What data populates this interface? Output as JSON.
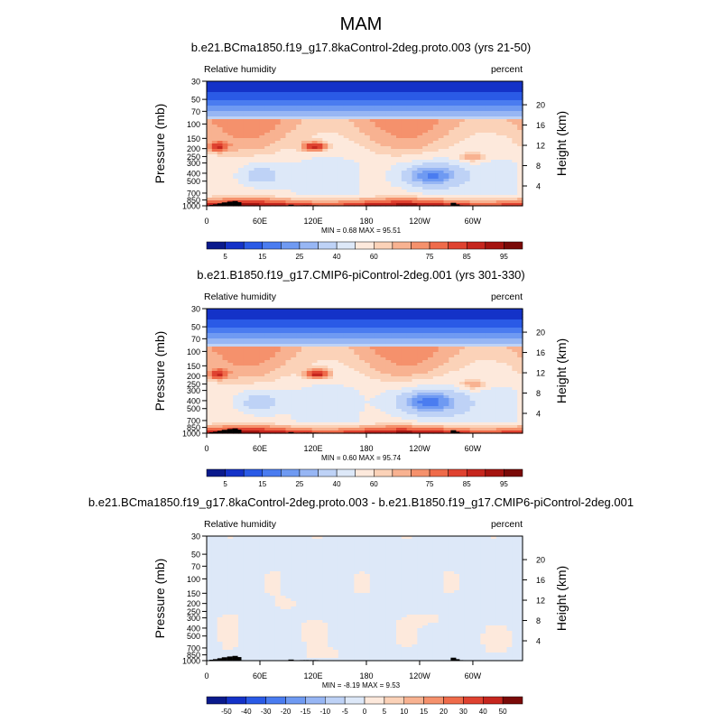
{
  "figure_title": "MAM",
  "chart_data": [
    {
      "type": "heatmap",
      "title": "b.e21.BCma1850.f19_g17.8kaControl-2deg.proto.003 (yrs 21-50)",
      "left_string": "Relative humidity",
      "right_string": "percent",
      "ylabel": "Pressure (mb)",
      "ylabel_right": "Height (km)",
      "xlabel": "",
      "x_ticks": [
        {
          "lon": 0,
          "label": "0"
        },
        {
          "lon": 60,
          "label": "60E"
        },
        {
          "lon": 120,
          "label": "120E"
        },
        {
          "lon": 180,
          "label": "180"
        },
        {
          "lon": 240,
          "label": "120W"
        },
        {
          "lon": 300,
          "label": "60W"
        }
      ],
      "xlim": [
        0,
        356
      ],
      "y_ticks": [
        {
          "p": 1000,
          "label": "1000"
        },
        {
          "p": 850,
          "label": "850"
        },
        {
          "p": 700,
          "label": "700"
        },
        {
          "p": 500,
          "label": "500"
        },
        {
          "p": 400,
          "label": "400"
        },
        {
          "p": 300,
          "label": "300"
        },
        {
          "p": 250,
          "label": "250"
        },
        {
          "p": 200,
          "label": "200"
        },
        {
          "p": 150,
          "label": "150"
        },
        {
          "p": 100,
          "label": "100"
        },
        {
          "p": 70,
          "label": "70"
        },
        {
          "p": 50,
          "label": "50"
        },
        {
          "p": 30,
          "label": "30"
        }
      ],
      "ylim_mb": [
        1000,
        30
      ],
      "height_ticks": [
        {
          "km": 4,
          "label": "4"
        },
        {
          "km": 8,
          "label": "8"
        },
        {
          "km": 12,
          "label": "12"
        },
        {
          "km": 16,
          "label": "16"
        },
        {
          "km": 20,
          "label": "20"
        }
      ],
      "min": 0.68,
      "max": 95.51,
      "min_max_text": "MIN = 0.68  MAX = 95.51",
      "colorbar": {
        "levels": [
          5,
          10,
          15,
          20,
          25,
          30,
          40,
          50,
          60,
          65,
          70,
          75,
          80,
          85,
          90,
          95
        ],
        "tick_labels": [
          "5",
          "15",
          "25",
          "40",
          "60",
          "75",
          "85",
          "95"
        ],
        "colors": [
          "#0a1a8c",
          "#1432c8",
          "#2a5ae6",
          "#4a7cf0",
          "#6f9af2",
          "#97b6f4",
          "#bed2f6",
          "#dde8f8",
          "#fde9dc",
          "#fbd2b8",
          "#f8b291",
          "#f5916c",
          "#ef6b4a",
          "#df4230",
          "#c6261e",
          "#a51410",
          "#7a0a08"
        ]
      },
      "features": [
        {
          "lon": 60,
          "p": 420,
          "value": 30,
          "sx": 18,
          "sy": 0.25
        },
        {
          "lon": 250,
          "p": 430,
          "value": 18,
          "sx": 26,
          "sy": 0.28
        },
        {
          "lon": 122,
          "p": 190,
          "value": 88,
          "sx": 10,
          "sy": 0.1
        },
        {
          "lon": 12,
          "p": 190,
          "value": 80,
          "sx": 8,
          "sy": 0.1
        },
        {
          "lon": 300,
          "p": 260,
          "value": 75,
          "sx": 12,
          "sy": 0.12
        }
      ],
      "topography": [
        {
          "lon": 6,
          "p": 975
        },
        {
          "lon": 10,
          "p": 960
        },
        {
          "lon": 15,
          "p": 935
        },
        {
          "lon": 20,
          "p": 910
        },
        {
          "lon": 26,
          "p": 890
        },
        {
          "lon": 32,
          "p": 875
        },
        {
          "lon": 36,
          "p": 905
        },
        {
          "lon": 95,
          "p": 970
        },
        {
          "lon": 108,
          "p": 985
        },
        {
          "lon": 112,
          "p": 985
        },
        {
          "lon": 115,
          "p": 985
        },
        {
          "lon": 120,
          "p": 985
        },
        {
          "lon": 123,
          "p": 985
        },
        {
          "lon": 278,
          "p": 920
        },
        {
          "lon": 282,
          "p": 960
        },
        {
          "lon": 286,
          "p": 985
        }
      ]
    },
    {
      "type": "heatmap",
      "title": "b.e21.B1850.f19_g17.CMIP6-piControl-2deg.001 (yrs 301-330)",
      "left_string": "Relative humidity",
      "right_string": "percent",
      "ylabel": "Pressure (mb)",
      "ylabel_right": "Height (km)",
      "xlabel": "",
      "x_ticks": [
        {
          "lon": 0,
          "label": "0"
        },
        {
          "lon": 60,
          "label": "60E"
        },
        {
          "lon": 120,
          "label": "120E"
        },
        {
          "lon": 180,
          "label": "180"
        },
        {
          "lon": 240,
          "label": "120W"
        },
        {
          "lon": 300,
          "label": "60W"
        }
      ],
      "xlim": [
        0,
        356
      ],
      "y_ticks": [
        {
          "p": 1000,
          "label": "1000"
        },
        {
          "p": 850,
          "label": "850"
        },
        {
          "p": 700,
          "label": "700"
        },
        {
          "p": 500,
          "label": "500"
        },
        {
          "p": 400,
          "label": "400"
        },
        {
          "p": 300,
          "label": "300"
        },
        {
          "p": 250,
          "label": "250"
        },
        {
          "p": 200,
          "label": "200"
        },
        {
          "p": 150,
          "label": "150"
        },
        {
          "p": 100,
          "label": "100"
        },
        {
          "p": 70,
          "label": "70"
        },
        {
          "p": 50,
          "label": "50"
        },
        {
          "p": 30,
          "label": "30"
        }
      ],
      "ylim_mb": [
        1000,
        30
      ],
      "height_ticks": [
        {
          "km": 4,
          "label": "4"
        },
        {
          "km": 8,
          "label": "8"
        },
        {
          "km": 12,
          "label": "12"
        },
        {
          "km": 16,
          "label": "16"
        },
        {
          "km": 20,
          "label": "20"
        }
      ],
      "min": 0.6,
      "max": 95.74,
      "min_max_text": "MIN = 0.60  MAX = 95.74",
      "colorbar": {
        "levels": [
          5,
          10,
          15,
          20,
          25,
          30,
          40,
          50,
          60,
          65,
          70,
          75,
          80,
          85,
          90,
          95
        ],
        "tick_labels": [
          "5",
          "15",
          "25",
          "40",
          "60",
          "75",
          "85",
          "95"
        ],
        "colors": [
          "#0a1a8c",
          "#1432c8",
          "#2a5ae6",
          "#4a7cf0",
          "#6f9af2",
          "#97b6f4",
          "#bed2f6",
          "#dde8f8",
          "#fde9dc",
          "#fbd2b8",
          "#f8b291",
          "#f5916c",
          "#ef6b4a",
          "#df4230",
          "#c6261e",
          "#a51410",
          "#7a0a08"
        ]
      },
      "features": [
        {
          "lon": 58,
          "p": 420,
          "value": 30,
          "sx": 18,
          "sy": 0.25
        },
        {
          "lon": 248,
          "p": 420,
          "value": 16,
          "sx": 28,
          "sy": 0.3
        },
        {
          "lon": 125,
          "p": 190,
          "value": 88,
          "sx": 10,
          "sy": 0.1
        },
        {
          "lon": 12,
          "p": 190,
          "value": 80,
          "sx": 8,
          "sy": 0.1
        },
        {
          "lon": 300,
          "p": 260,
          "value": 75,
          "sx": 12,
          "sy": 0.12
        }
      ],
      "topography": [
        {
          "lon": 6,
          "p": 975
        },
        {
          "lon": 10,
          "p": 960
        },
        {
          "lon": 15,
          "p": 935
        },
        {
          "lon": 20,
          "p": 910
        },
        {
          "lon": 26,
          "p": 890
        },
        {
          "lon": 32,
          "p": 875
        },
        {
          "lon": 36,
          "p": 905
        },
        {
          "lon": 95,
          "p": 970
        },
        {
          "lon": 108,
          "p": 985
        },
        {
          "lon": 112,
          "p": 985
        },
        {
          "lon": 115,
          "p": 985
        },
        {
          "lon": 120,
          "p": 985
        },
        {
          "lon": 123,
          "p": 985
        },
        {
          "lon": 278,
          "p": 920
        },
        {
          "lon": 282,
          "p": 960
        },
        {
          "lon": 286,
          "p": 985
        }
      ]
    },
    {
      "type": "heatmap",
      "title": "b.e21.BCma1850.f19_g17.8kaControl-2deg.proto.003 - b.e21.B1850.f19_g17.CMIP6-piControl-2deg.001",
      "left_string": "Relative humidity",
      "right_string": "percent",
      "ylabel": "Pressure (mb)",
      "ylabel_right": "Height (km)",
      "xlabel": "",
      "x_ticks": [
        {
          "lon": 0,
          "label": "0"
        },
        {
          "lon": 60,
          "label": "60E"
        },
        {
          "lon": 120,
          "label": "120E"
        },
        {
          "lon": 180,
          "label": "180"
        },
        {
          "lon": 240,
          "label": "120W"
        },
        {
          "lon": 300,
          "label": "60W"
        }
      ],
      "xlim": [
        0,
        356
      ],
      "y_ticks": [
        {
          "p": 1000,
          "label": "1000"
        },
        {
          "p": 850,
          "label": "850"
        },
        {
          "p": 700,
          "label": "700"
        },
        {
          "p": 500,
          "label": "500"
        },
        {
          "p": 400,
          "label": "400"
        },
        {
          "p": 300,
          "label": "300"
        },
        {
          "p": 250,
          "label": "250"
        },
        {
          "p": 200,
          "label": "200"
        },
        {
          "p": 150,
          "label": "150"
        },
        {
          "p": 100,
          "label": "100"
        },
        {
          "p": 70,
          "label": "70"
        },
        {
          "p": 50,
          "label": "50"
        },
        {
          "p": 30,
          "label": "30"
        }
      ],
      "ylim_mb": [
        1000,
        30
      ],
      "height_ticks": [
        {
          "km": 4,
          "label": "4"
        },
        {
          "km": 8,
          "label": "8"
        },
        {
          "km": 12,
          "label": "12"
        },
        {
          "km": 16,
          "label": "16"
        },
        {
          "km": 20,
          "label": "20"
        }
      ],
      "min": -8.19,
      "max": 9.53,
      "min_max_text": "MIN = -8.19  MAX =  9.53",
      "colorbar": {
        "levels": [
          -50,
          -40,
          -30,
          -20,
          -15,
          -10,
          -5,
          0,
          5,
          10,
          15,
          20,
          30,
          40,
          50
        ],
        "tick_labels": [
          "-50",
          "-40",
          "-30",
          "-20",
          "-15",
          "-10",
          "-5",
          "0",
          "5",
          "10",
          "15",
          "20",
          "30",
          "40",
          "50"
        ],
        "colors": [
          "#0a1a8c",
          "#1432c8",
          "#2a5ae6",
          "#4a7cf0",
          "#6f9af2",
          "#97b6f4",
          "#bed2f6",
          "#dde8f8",
          "#fde9dc",
          "#fbd2b8",
          "#f8b291",
          "#f5916c",
          "#ef6b4a",
          "#df4230",
          "#c6261e",
          "#7a0a08"
        ]
      },
      "features": [
        {
          "lon": 120,
          "p": 420,
          "value": 3,
          "sx": 10,
          "sy": 0.2
        },
        {
          "lon": 25,
          "p": 330,
          "value": 3,
          "sx": 8,
          "sy": 0.2
        },
        {
          "lon": 255,
          "p": 310,
          "value": 3,
          "sx": 25,
          "sy": 0.15
        },
        {
          "lon": 90,
          "p": 210,
          "value": 3,
          "sx": 10,
          "sy": 0.15
        },
        {
          "lon": 330,
          "p": 550,
          "value": 3,
          "sx": 10,
          "sy": 0.2
        },
        {
          "lon": 135,
          "p": 820,
          "value": 3,
          "sx": 16,
          "sy": 0.1
        },
        {
          "lon": 228,
          "p": 770,
          "value": -7,
          "sx": 4,
          "sy": 0.04
        }
      ],
      "topography": [
        {
          "lon": 6,
          "p": 975
        },
        {
          "lon": 10,
          "p": 960
        },
        {
          "lon": 15,
          "p": 935
        },
        {
          "lon": 20,
          "p": 910
        },
        {
          "lon": 26,
          "p": 890
        },
        {
          "lon": 32,
          "p": 875
        },
        {
          "lon": 36,
          "p": 905
        },
        {
          "lon": 95,
          "p": 970
        },
        {
          "lon": 108,
          "p": 985
        },
        {
          "lon": 112,
          "p": 985
        },
        {
          "lon": 115,
          "p": 985
        },
        {
          "lon": 120,
          "p": 985
        },
        {
          "lon": 123,
          "p": 985
        },
        {
          "lon": 278,
          "p": 920
        },
        {
          "lon": 282,
          "p": 960
        },
        {
          "lon": 286,
          "p": 985
        }
      ]
    }
  ]
}
